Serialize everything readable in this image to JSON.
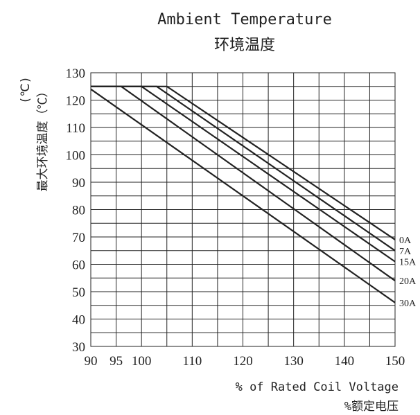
{
  "chart_data": {
    "type": "line",
    "title": "Ambient Temperature",
    "subtitle": "环境温度",
    "xlabel": "% of Rated Coil Voltage",
    "xlabel_cn": "%额定电压",
    "ylabel": "最大环境温度（℃）",
    "ylabel_unit": "(℃)",
    "xlim": [
      90,
      150
    ],
    "ylim": [
      30,
      130
    ],
    "xticks": [
      90,
      95,
      100,
      110,
      120,
      130,
      140,
      150
    ],
    "yticks": [
      30,
      40,
      50,
      60,
      70,
      80,
      90,
      100,
      110,
      120,
      130
    ],
    "grid": true,
    "series": [
      {
        "name": "0A",
        "x": [
          90,
          105,
          150
        ],
        "y": [
          125,
          125,
          69
        ]
      },
      {
        "name": "7A",
        "x": [
          90,
          103,
          150
        ],
        "y": [
          125,
          125,
          65
        ]
      },
      {
        "name": "15A",
        "x": [
          90,
          100,
          150
        ],
        "y": [
          125,
          125,
          61
        ]
      },
      {
        "name": "20A",
        "x": [
          90,
          96,
          150
        ],
        "y": [
          125,
          125,
          54
        ]
      },
      {
        "name": "30A",
        "x": [
          90,
          150
        ],
        "y": [
          124,
          46
        ]
      }
    ]
  }
}
